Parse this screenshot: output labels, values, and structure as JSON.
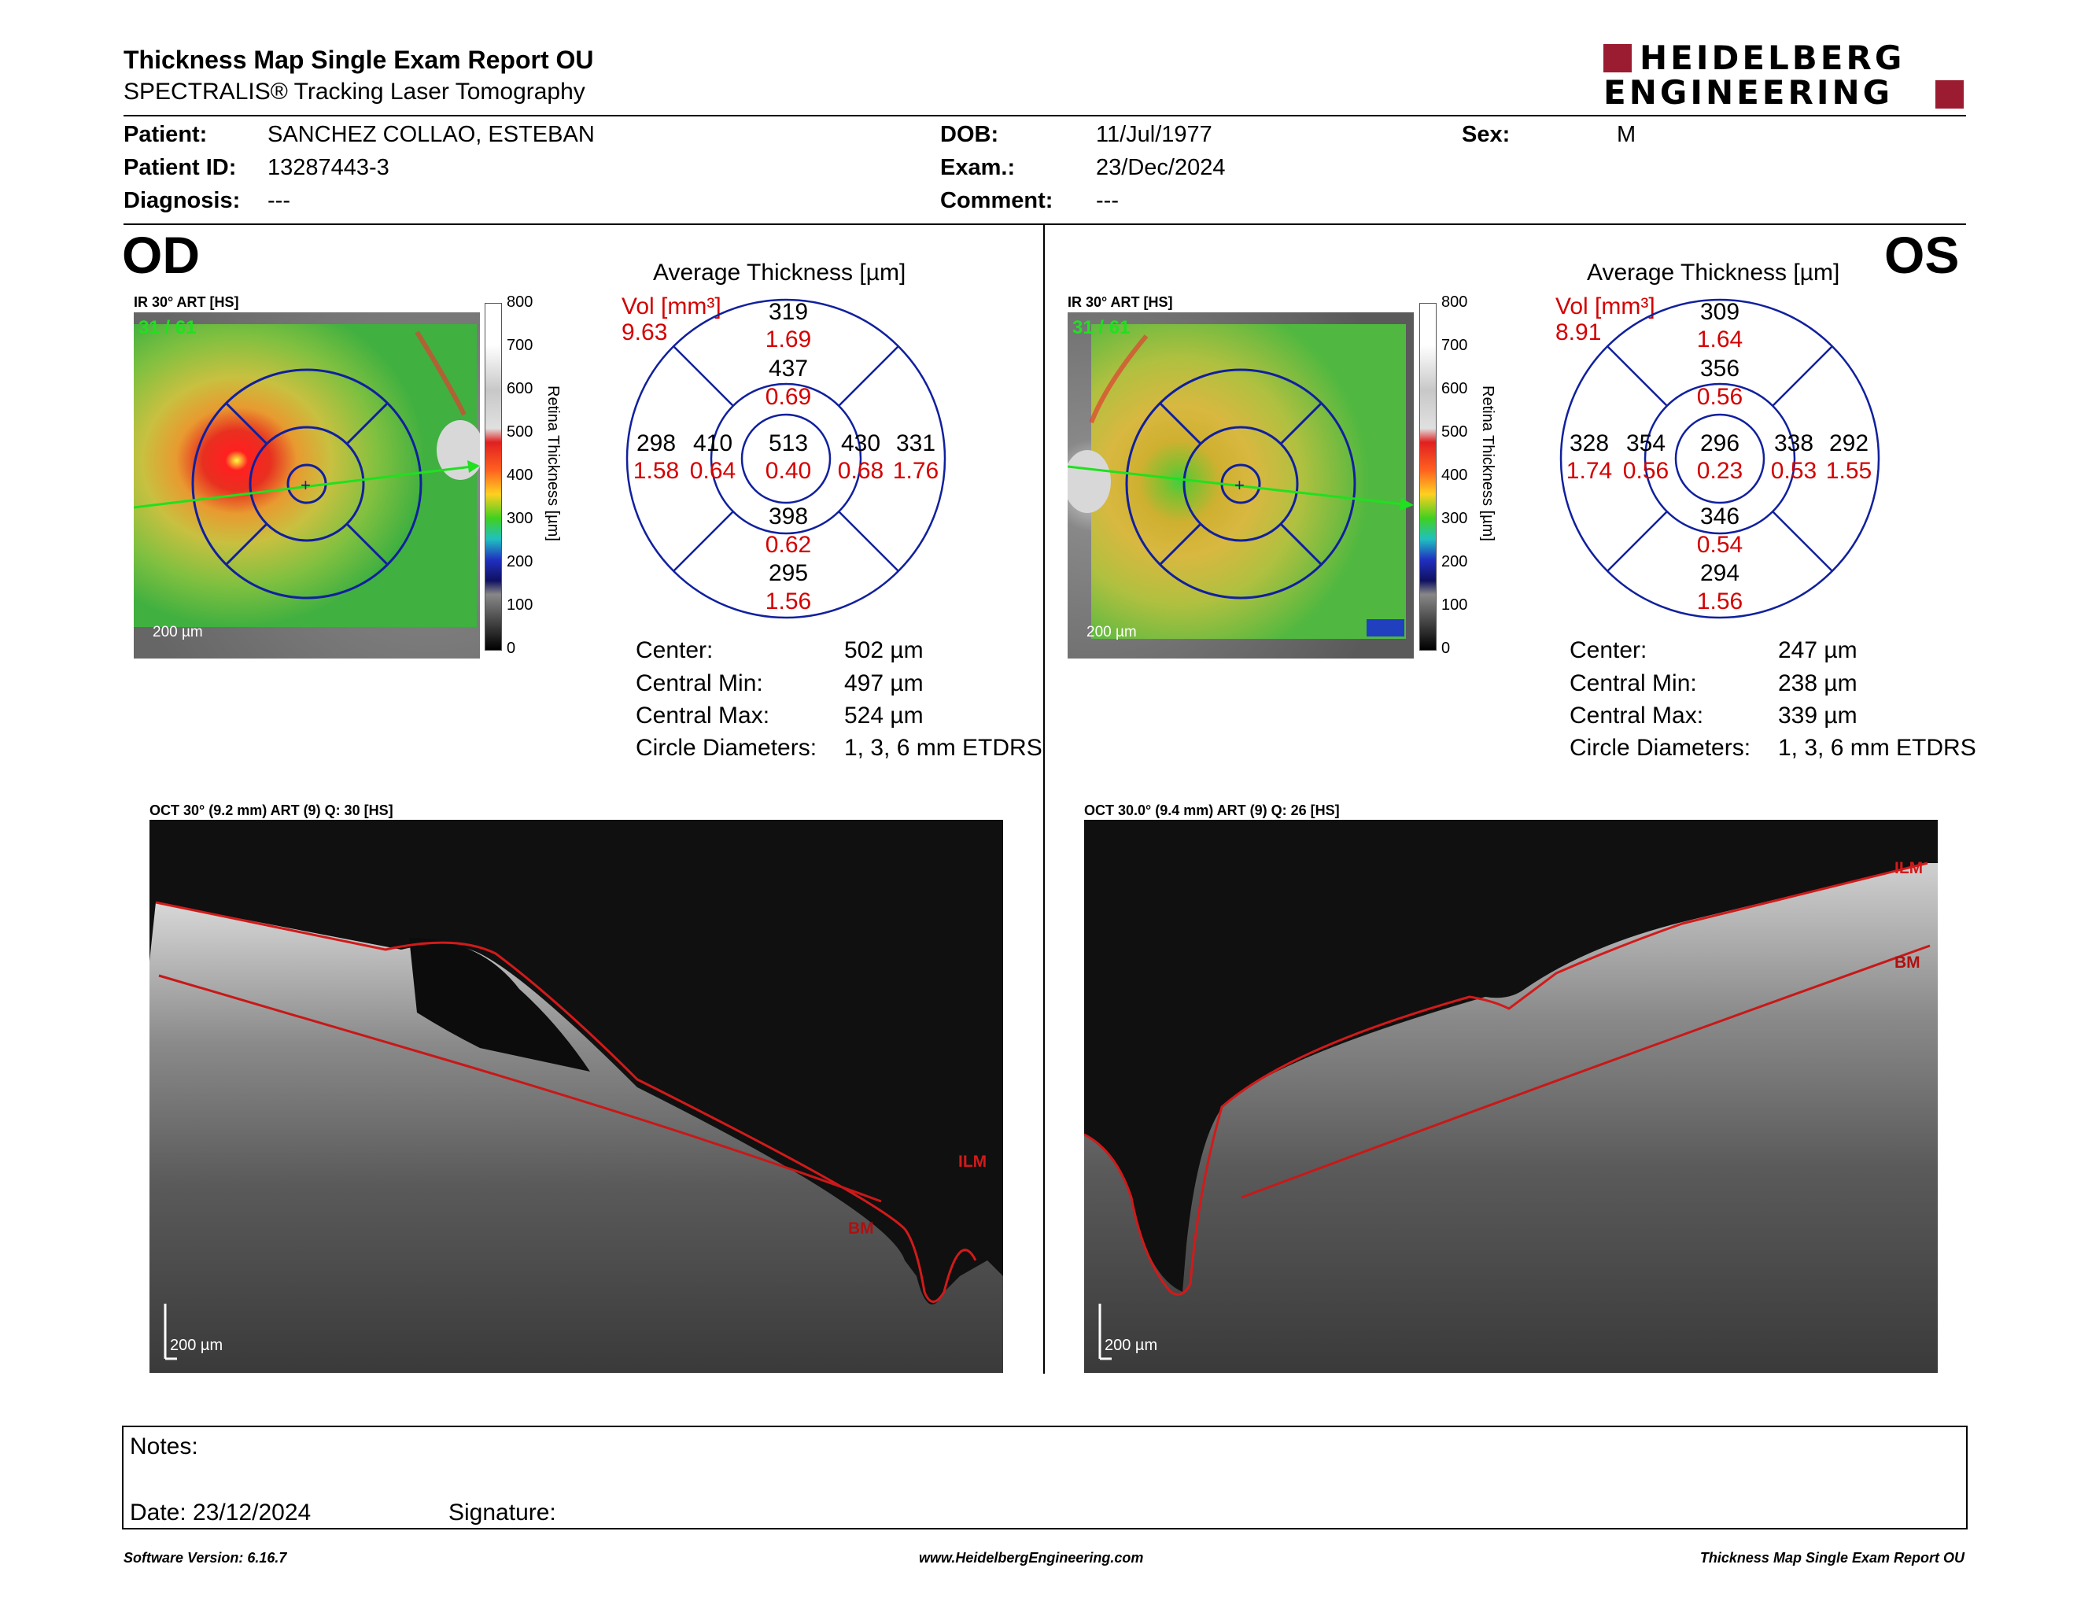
{
  "header": {
    "title": "Thickness Map Single Exam Report OU",
    "subtitle": "SPECTRALIS® Tracking Laser Tomography",
    "logo_line1": "HEIDELBERG",
    "logo_line2": "ENGINEERING",
    "brand_color": "#9b1b30"
  },
  "patient": {
    "patient_label": "Patient:",
    "patient_value": "SANCHEZ COLLAO, ESTEBAN",
    "id_label": "Patient ID:",
    "id_value": "13287443-3",
    "diag_label": "Diagnosis:",
    "diag_value": "---",
    "dob_label": "DOB:",
    "dob_value": "11/Jul/1977",
    "exam_label": "Exam.:",
    "exam_value": "23/Dec/2024",
    "comment_label": "Comment:",
    "comment_value": "---",
    "sex_label": "Sex:",
    "sex_value": "M"
  },
  "od": {
    "eye": "OD",
    "ir_caption": "IR 30° ART [HS]",
    "frame": "31 / 61",
    "scale_label": "200 µm",
    "avg_title": "Average Thickness [µm]",
    "vol_label": "Vol [mm³]",
    "vol_value": "9.63",
    "etdrs": {
      "center": {
        "t": "513",
        "v": "0.40"
      },
      "inner_sup": {
        "t": "437",
        "v": "0.69"
      },
      "inner_inf": {
        "t": "398",
        "v": "0.62"
      },
      "inner_left": {
        "t": "410",
        "v": "0.64"
      },
      "inner_right": {
        "t": "430",
        "v": "0.68"
      },
      "outer_sup": {
        "t": "319",
        "v": "1.69"
      },
      "outer_inf": {
        "t": "295",
        "v": "1.56"
      },
      "outer_left": {
        "t": "298",
        "v": "1.58"
      },
      "outer_right": {
        "t": "331",
        "v": "1.76"
      }
    },
    "stats": {
      "center_l": "Center:",
      "center_v": "502 µm",
      "cmin_l": "Central Min:",
      "cmin_v": "497 µm",
      "cmax_l": "Central Max:",
      "cmax_v": "524 µm",
      "diam_l": "Circle Diameters:",
      "diam_v": "1, 3, 6 mm ETDRS"
    },
    "oct_caption": "OCT 30° (9.2 mm) ART (9) Q: 30 [HS]",
    "oct_scale": "200 µm",
    "ilm_label": "ILM",
    "bm_label": "BM"
  },
  "os": {
    "eye": "OS",
    "ir_caption": "IR 30° ART [HS]",
    "frame": "31 / 61",
    "scale_label": "200 µm",
    "avg_title": "Average Thickness [µm]",
    "vol_label": "Vol [mm³]",
    "vol_value": "8.91",
    "etdrs": {
      "center": {
        "t": "296",
        "v": "0.23"
      },
      "inner_sup": {
        "t": "356",
        "v": "0.56"
      },
      "inner_inf": {
        "t": "346",
        "v": "0.54"
      },
      "inner_left": {
        "t": "354",
        "v": "0.56"
      },
      "inner_right": {
        "t": "338",
        "v": "0.53"
      },
      "outer_sup": {
        "t": "309",
        "v": "1.64"
      },
      "outer_inf": {
        "t": "294",
        "v": "1.56"
      },
      "outer_left": {
        "t": "328",
        "v": "1.74"
      },
      "outer_right": {
        "t": "292",
        "v": "1.55"
      }
    },
    "stats": {
      "center_l": "Center:",
      "center_v": "247 µm",
      "cmin_l": "Central Min:",
      "cmin_v": "238 µm",
      "cmax_l": "Central Max:",
      "cmax_v": "339 µm",
      "diam_l": "Circle Diameters:",
      "diam_v": "1, 3, 6 mm ETDRS"
    },
    "oct_caption": "OCT 30.0° (9.4 mm) ART (9) Q: 26 [HS]",
    "oct_scale": "200 µm",
    "ilm_label": "ILM",
    "bm_label": "BM"
  },
  "colorbar": {
    "ticks": [
      "800",
      "700",
      "600",
      "500",
      "400",
      "300",
      "200",
      "100",
      "0"
    ],
    "label": "Retina Thickness [µm]"
  },
  "notes": {
    "notes_label": "Notes:",
    "date_label": "Date: 23/12/2024",
    "signature_label": "Signature:"
  },
  "footer": {
    "left": "Software Version: 6.16.7",
    "center": "www.HeidelbergEngineering.com",
    "right": "Thickness Map Single Exam Report OU"
  }
}
